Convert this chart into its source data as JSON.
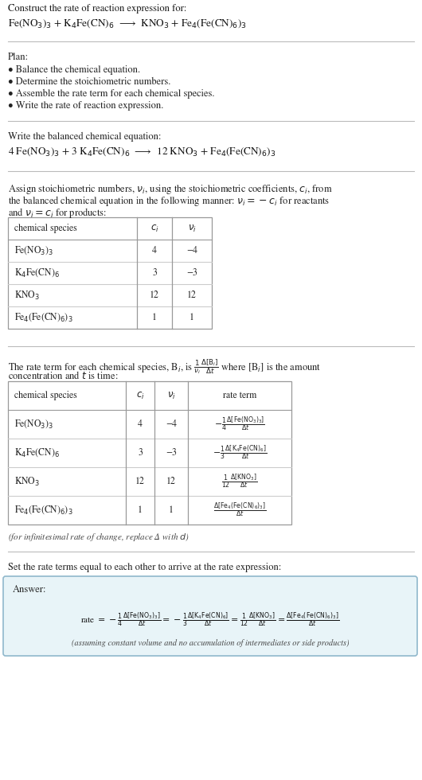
{
  "bg_color": "#ffffff",
  "title_line1": "Construct the rate of reaction expression for:",
  "reaction_unbalanced": "Fe(NO$_3$)$_3$ + K$_4$Fe(CN)$_6$  ⟶  KNO$_3$ + Fe$_4$(Fe(CN)$_6$)$_3$",
  "plan_header": "Plan:",
  "plan_items": [
    "• Balance the chemical equation.",
    "• Determine the stoichiometric numbers.",
    "• Assemble the rate term for each chemical species.",
    "• Write the rate of reaction expression."
  ],
  "balanced_header": "Write the balanced chemical equation:",
  "reaction_balanced": "4 Fe(NO$_3$)$_3$ + 3 K$_4$Fe(CN)$_6$  ⟶  12 KNO$_3$ + Fe$_4$(Fe(CN)$_6$)$_3$",
  "stoich_line1": "Assign stoichiometric numbers, $\\nu_i$, using the stoichiometric coefficients, $c_i$, from",
  "stoich_line2": "the balanced chemical equation in the following manner: $\\nu_i = -c_i$ for reactants",
  "stoich_line3": "and $\\nu_i = c_i$ for products:",
  "table1_headers": [
    "chemical species",
    "$c_i$",
    "$\\nu_i$"
  ],
  "table1_rows": [
    [
      "Fe(NO$_3$)$_3$",
      "4",
      "−4"
    ],
    [
      "K$_4$Fe(CN)$_6$",
      "3",
      "−3"
    ],
    [
      "KNO$_3$",
      "12",
      "12"
    ],
    [
      "Fe$_4$(Fe(CN)$_6$)$_3$",
      "1",
      "1"
    ]
  ],
  "rate_intro1": "The rate term for each chemical species, B$_i$, is $\\frac{1}{\\nu_i}\\frac{\\Delta[\\mathrm{B}_i]}{\\Delta t}$ where [B$_i$] is the amount",
  "rate_intro2": "concentration and $t$ is time:",
  "table2_headers": [
    "chemical species",
    "$c_i$",
    "$\\nu_i$",
    "rate term"
  ],
  "table2_rows": [
    [
      "Fe(NO$_3$)$_3$",
      "4",
      "−4",
      "$-\\frac{1}{4}\\frac{\\Delta[\\mathrm{Fe(NO_3)_3}]}{\\Delta t}$"
    ],
    [
      "K$_4$Fe(CN)$_6$",
      "3",
      "−3",
      "$-\\frac{1}{3}\\frac{\\Delta[\\mathrm{K_4Fe(CN)_6}]}{\\Delta t}$"
    ],
    [
      "KNO$_3$",
      "12",
      "12",
      "$\\frac{1}{12}\\frac{\\Delta[\\mathrm{KNO_3}]}{\\Delta t}$"
    ],
    [
      "Fe$_4$(Fe(CN)$_6$)$_3$",
      "1",
      "1",
      "$\\frac{\\Delta[\\mathrm{Fe_4(Fe(CN)_6)_3}]}{\\Delta t}$"
    ]
  ],
  "inf_note": "(for infinitesimal rate of change, replace Δ with $d$)",
  "answer_intro": "Set the rate terms equal to each other to arrive at the rate expression:",
  "answer_label": "Answer:",
  "answer_box_bg": "#e8f4f8",
  "answer_box_edge": "#90b8cc",
  "rate_expr": "rate $= -\\frac{1}{4}\\frac{\\Delta[\\mathrm{Fe(NO_3)_3}]}{\\Delta t} = -\\frac{1}{3}\\frac{\\Delta[\\mathrm{K_4Fe(CN)_6}]}{\\Delta t} = \\frac{1}{12}\\frac{\\Delta[\\mathrm{KNO_3}]}{\\Delta t} = \\frac{\\Delta[\\mathrm{Fe_4(Fe(CN)_6)_3}]}{\\Delta t}$",
  "answer_note": "(assuming constant volume and no accumulation of intermediates or side products)"
}
